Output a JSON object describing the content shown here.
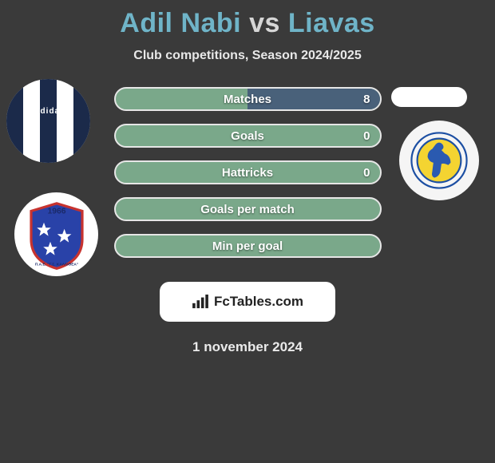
{
  "title": {
    "player1": "Adil Nabi",
    "vs": "vs",
    "player2": "Liavas",
    "player1_color": "#6fb4c8",
    "vs_color": "#d6d6d6",
    "player2_color": "#6fb4c8"
  },
  "subtitle": "Club competitions, Season 2024/2025",
  "stats": [
    {
      "label": "Matches",
      "value_right": "8",
      "has_right_value": true,
      "fill_right_color": "#49617a"
    },
    {
      "label": "Goals",
      "value_right": "0",
      "has_right_value": true,
      "fill_right_color": null
    },
    {
      "label": "Hattricks",
      "value_right": "0",
      "has_right_value": true,
      "fill_right_color": null
    },
    {
      "label": "Goals per match",
      "value_right": "",
      "has_right_value": false,
      "fill_right_color": null
    },
    {
      "label": "Min per goal",
      "value_right": "",
      "has_right_value": false,
      "fill_right_color": null
    }
  ],
  "bar_style": {
    "base_color": "#7aa88a",
    "border_color": "#e6e6e6"
  },
  "player_left_kit": {
    "stripe_colors": [
      "#1b2a4a",
      "#ffffff",
      "#1b2a4a",
      "#ffffff",
      "#1b2a4a"
    ],
    "brand_text": "adidas"
  },
  "crest_left": {
    "year": "1966",
    "shield_fill": "#2942a8",
    "shield_stroke": "#c7332f",
    "star_color": "#ffffff",
    "text_color": "#1b2a6a",
    "label": "Π.Α.Ε. \"Γ.Σ. ΚΑΛΛΙΘΕΑ\""
  },
  "crest_right": {
    "border_color": "#1c4fa3",
    "inner_fill": "#f4d431",
    "figure_color": "#2a5ab0"
  },
  "brand": {
    "text": "FcTables.com"
  },
  "date": "1 november 2024",
  "colors": {
    "background": "#3a3a3a"
  }
}
